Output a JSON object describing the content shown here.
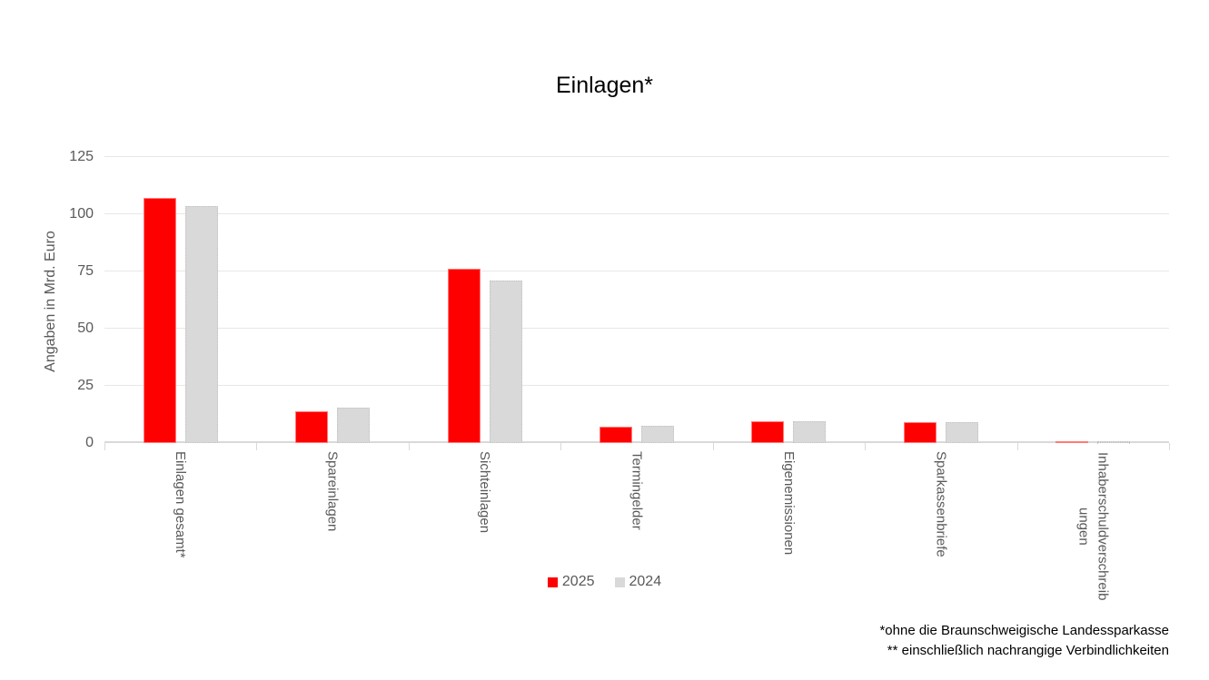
{
  "title": "Einlagen*",
  "y_axis": {
    "label": "Angaben in Mrd. Euro",
    "ticks": [
      0,
      25,
      50,
      75,
      100,
      125
    ]
  },
  "legend": {
    "items": [
      {
        "label": "2025",
        "color": "#ff0000"
      },
      {
        "label": "2024",
        "color": "#d9d9d9"
      }
    ]
  },
  "footnotes": [
    "*ohne die Braunschweigische Landessparkasse",
    "** einschließlich nachrangige Verbindlichkeiten"
  ],
  "colors": {
    "series_2025": "#ff0000",
    "series_2024": "#d9d9d9",
    "axis_text": "#595959",
    "gridline": "#e7e7e7",
    "baseline": "#d9d9d9",
    "title_text": "#000000"
  },
  "chart_data": {
    "type": "bar",
    "title": "Einlagen*",
    "xlabel": "",
    "ylabel": "Angaben in Mrd. Euro",
    "ylim": [
      0,
      125
    ],
    "grid": true,
    "legend_position": "bottom",
    "categories": [
      "Einlagen gesamt*",
      "Spareinlagen",
      "Sichteinlagen",
      "Termingelder",
      "Eigenemissionen",
      "Sparkassenbriefe",
      "Inhaberschuldverschreibungen"
    ],
    "series": [
      {
        "name": "2025",
        "color": "#ff0000",
        "values": [
          107,
          14,
          76,
          7.3,
          9.4,
          9.0,
          0.3
        ]
      },
      {
        "name": "2024",
        "color": "#d9d9d9",
        "values": [
          103.6,
          15.5,
          71,
          7.5,
          9.4,
          9.2,
          0.1
        ]
      }
    ]
  }
}
